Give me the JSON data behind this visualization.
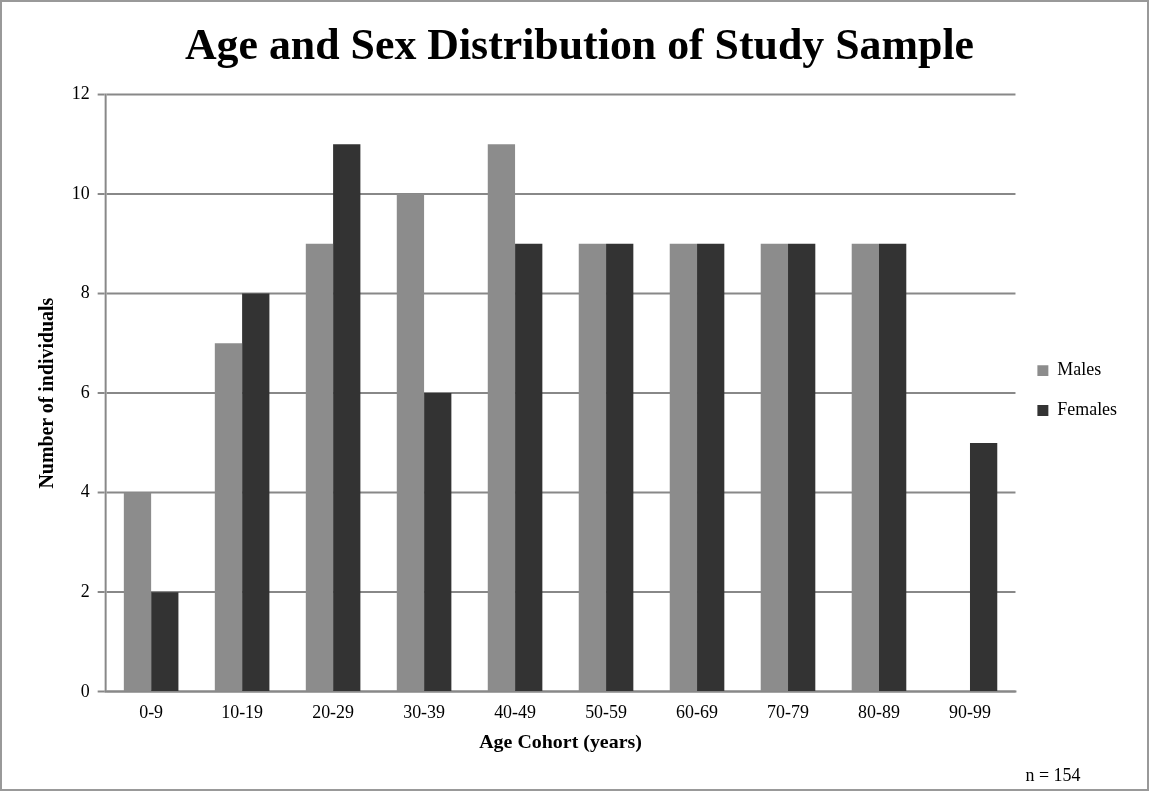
{
  "chart_data": {
    "type": "bar",
    "title": "Age and Sex Distribution of Study Sample",
    "xlabel": "Age Cohort (years)",
    "ylabel": "Number of individuals",
    "categories": [
      "0-9",
      "10-19",
      "20-29",
      "30-39",
      "40-49",
      "50-59",
      "60-69",
      "70-79",
      "80-89",
      "90-99"
    ],
    "series": [
      {
        "name": "Males",
        "color": "#8c8c8c",
        "values": [
          4,
          7,
          9,
          10,
          11,
          9,
          9,
          9,
          9,
          0
        ]
      },
      {
        "name": "Females",
        "color": "#333333",
        "values": [
          2,
          8,
          11,
          6,
          9,
          9,
          9,
          9,
          9,
          5
        ]
      }
    ],
    "ylim": [
      0,
      12
    ],
    "yticks": [
      0,
      2,
      4,
      6,
      8,
      10,
      12
    ],
    "grid": "y",
    "legend": "right",
    "annotations": [
      "n = 154"
    ]
  }
}
